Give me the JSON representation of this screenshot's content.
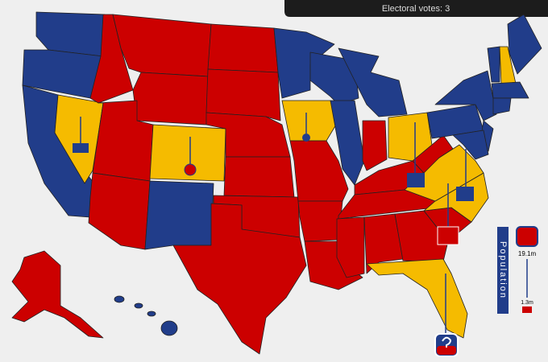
{
  "header": {
    "electoral_votes": "Electoral votes: 3"
  },
  "legend": {
    "title": "Population",
    "max": "19.1m",
    "min": "1.3m"
  }
}
